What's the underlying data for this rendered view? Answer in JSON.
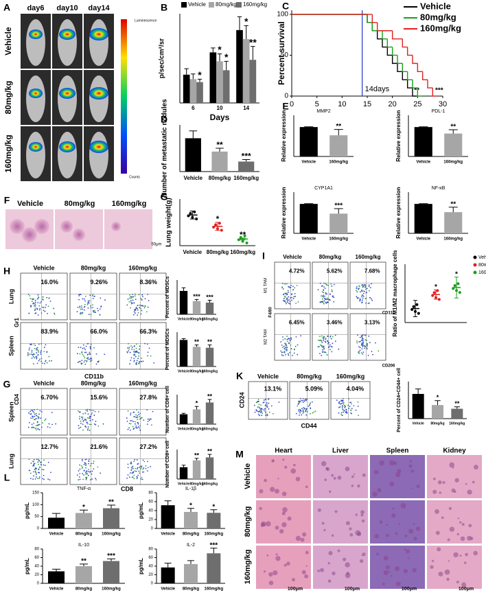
{
  "panel_letters": [
    "A",
    "B",
    "C",
    "D",
    "E",
    "F",
    "G",
    "H",
    "I",
    "G",
    "K",
    "L",
    "M"
  ],
  "images": {
    "A": {
      "columns": [
        "day6",
        "day10",
        "day14"
      ],
      "rows": [
        "Vehicle",
        "80mg/kg",
        "160mg/kg"
      ],
      "colorbar_title": "Luminescence",
      "colorbar_unit": "Counts"
    },
    "F": {
      "columns": [
        "Vehicle",
        "80mg/kg",
        "160mg/kg"
      ],
      "scale": "50μm"
    },
    "H": {
      "columns": [
        "Vehicle",
        "80mg/kg",
        "160mg/kg"
      ],
      "rows": [
        "Lung",
        "Spleen"
      ],
      "y_axis": "Gr1",
      "x_axis": "CD11b",
      "percents": [
        "16.0%",
        "9.26%",
        "8.36%",
        "83.9%",
        "66.0%",
        "66.3%"
      ]
    },
    "I": {
      "columns": [
        "Vehicle",
        "80mg/kg",
        "160mg/kg"
      ],
      "rows": [
        "M1 TAM",
        "M2 TAM"
      ],
      "y_axis": "F4/80",
      "x_axes": [
        "CD11c",
        "CD206"
      ],
      "percents": [
        "4.72%",
        "5.62%",
        "7.68%",
        "6.45%",
        "3.46%",
        "3.13%"
      ]
    },
    "G": {
      "columns": [
        "Vehicle",
        "80mg/kg",
        "160mg/kg"
      ],
      "rows": [
        "Spleen",
        "Lung"
      ],
      "y_axis": "CD4",
      "x_axis": "CD8",
      "percents": [
        "6.70%",
        "15.6%",
        "27.8%",
        "12.7%",
        "21.6%",
        "27.2%"
      ]
    },
    "K": {
      "columns": [
        "Vehicle",
        "80mg/kg",
        "160mg/kg"
      ],
      "y_axis": "CD24",
      "x_axis": "CD44",
      "percents": [
        "13.1%",
        "5.09%",
        "4.04%"
      ]
    },
    "M": {
      "columns": [
        "Heart",
        "Liver",
        "Spleen",
        "Kidney"
      ],
      "rows": [
        "Vehicle",
        "80mg/kg",
        "160mg/kg"
      ],
      "scales": [
        "100μm",
        "100μm",
        "100μm",
        "100μm"
      ]
    }
  },
  "chart_data": [
    {
      "type": "grouped_bar",
      "ylabel": "p/sec/cm²/sr",
      "xlabel": "Days",
      "categories": [
        "6",
        "10",
        "14"
      ],
      "ylim": [
        0,
        6000
      ],
      "series": [
        {
          "name": "Vehicle",
          "color": "#000000",
          "values": [
            1900,
            3400,
            4900
          ],
          "errors": [
            400,
            300,
            900
          ],
          "annotations": [
            null,
            null,
            null
          ]
        },
        {
          "name": "80mg/kg",
          "color": "#a6a6a6",
          "values": [
            1600,
            2800,
            4300
          ],
          "errors": [
            350,
            500,
            900
          ],
          "annotations": [
            null,
            "*",
            "*"
          ]
        },
        {
          "name": "160mg/kg",
          "color": "#6e6e6e",
          "values": [
            1400,
            2200,
            2900
          ],
          "errors": [
            200,
            600,
            900
          ],
          "annotations": [
            "*",
            "*",
            "**"
          ]
        }
      ]
    },
    {
      "type": "survival",
      "ylabel": "Percent survival",
      "xlim": [
        0,
        30
      ],
      "ylim": [
        0,
        105
      ],
      "xticks": [
        0,
        5,
        10,
        15,
        20,
        25,
        30
      ],
      "yticks": [
        0,
        50,
        100
      ],
      "vline": 14,
      "annotations": [
        "14days",
        "**",
        "***"
      ],
      "series": [
        {
          "name": "Vehicle",
          "color": "#000000",
          "x": [
            0,
            15,
            16,
            17,
            18,
            19,
            20,
            21,
            22,
            23,
            24
          ],
          "values": [
            100,
            90,
            80,
            70,
            60,
            50,
            40,
            30,
            20,
            10,
            0
          ]
        },
        {
          "name": "80mg/kg",
          "color": "#1a9e1a",
          "x": [
            0,
            15,
            16,
            18,
            19,
            20,
            21,
            22,
            23,
            24,
            25
          ],
          "values": [
            100,
            90,
            80,
            70,
            60,
            50,
            40,
            30,
            20,
            10,
            0
          ]
        },
        {
          "name": "160mg/kg",
          "color": "#e0201e",
          "x": [
            0,
            16,
            17,
            20,
            22,
            23,
            24,
            25,
            26,
            27,
            28
          ],
          "values": [
            100,
            90,
            80,
            70,
            60,
            50,
            40,
            30,
            20,
            10,
            0
          ]
        }
      ]
    },
    {
      "type": "bar",
      "ylabel": "Number of metastatic nodules",
      "categories": [
        "Vehicle",
        "80mg/kg",
        "160mg/kg"
      ],
      "values": [
        50,
        30,
        15
      ],
      "errors": [
        11,
        5,
        3
      ],
      "colors": [
        "#000000",
        "#a6a6a6",
        "#6e6e6e"
      ],
      "annotations": [
        null,
        "**",
        "***"
      ],
      "ylim": [
        0,
        70
      ]
    },
    {
      "type": "dot",
      "ylabel": "Lung weight(g)",
      "categories": [
        "Vehicle",
        "80mg/kg",
        "160mg/kg"
      ],
      "values": [
        1.12,
        0.78,
        0.4
      ],
      "errors": [
        0.12,
        0.12,
        0.03
      ],
      "colors": [
        "#000000",
        "#e0201e",
        "#1a9e1a"
      ],
      "annotations": [
        null,
        "*",
        "**"
      ],
      "ylim": [
        0.2,
        1.6
      ]
    },
    {
      "type": "bar",
      "title": "MMP2",
      "ylabel": "Relative expression",
      "categories": [
        "Vehicle",
        "160mg/kg"
      ],
      "values": [
        1.0,
        0.72
      ],
      "errors": [
        0.01,
        0.2
      ],
      "colors": [
        "#000000",
        "#a6a6a6"
      ],
      "annotations": [
        null,
        "**"
      ],
      "ylim": [
        0,
        1.4
      ]
    },
    {
      "type": "bar",
      "title": "PDL-1",
      "ylabel": "Relative expression",
      "categories": [
        "Vehicle",
        "160mg/kg"
      ],
      "values": [
        1.0,
        0.78
      ],
      "errors": [
        0.01,
        0.13
      ],
      "colors": [
        "#000000",
        "#a6a6a6"
      ],
      "annotations": [
        null,
        "**"
      ],
      "ylim": [
        0,
        1.4
      ]
    },
    {
      "type": "bar",
      "title": "CYP1A1",
      "ylabel": "Relative expression",
      "categories": [
        "Vehicle",
        "160mg/kg"
      ],
      "values": [
        1.0,
        0.67
      ],
      "errors": [
        0.01,
        0.17
      ],
      "colors": [
        "#000000",
        "#a6a6a6"
      ],
      "annotations": [
        null,
        "***"
      ],
      "ylim": [
        0,
        1.4
      ]
    },
    {
      "type": "bar",
      "title": "NF-κB",
      "ylabel": "Relative expression",
      "categories": [
        "Vehicle",
        "160mg/kg"
      ],
      "values": [
        1.0,
        0.72
      ],
      "errors": [
        0.01,
        0.17
      ],
      "colors": [
        "#000000",
        "#a6a6a6"
      ],
      "annotations": [
        null,
        "**"
      ],
      "ylim": [
        0,
        1.4
      ]
    },
    {
      "type": "bar",
      "ylabel": "Percent of MDSCs",
      "categories": [
        "Vehicle",
        "80mg/kg",
        "160mg/kg"
      ],
      "values": [
        15,
        8.5,
        7.5
      ],
      "errors": [
        2,
        1,
        1.5
      ],
      "colors": [
        "#000000",
        "#a6a6a6",
        "#6e6e6e"
      ],
      "annotations": [
        null,
        "***",
        "***"
      ],
      "ylim": [
        0,
        22
      ]
    },
    {
      "type": "bar",
      "ylabel": "Percent of MDSCs",
      "categories": [
        "Vehicle",
        "80mg/kg",
        "160mg/kg"
      ],
      "values": [
        85,
        63,
        60
      ],
      "errors": [
        4,
        6,
        9
      ],
      "colors": [
        "#000000",
        "#a6a6a6",
        "#6e6e6e"
      ],
      "annotations": [
        null,
        "**",
        "**"
      ],
      "ylim": [
        0,
        110
      ]
    },
    {
      "type": "dot",
      "ylabel": "Ratio of M1/M2 macrophage cells",
      "legend": [
        "Vehicle",
        "80mg/kg",
        "160mg/kg"
      ],
      "categories": [
        null,
        null,
        null
      ],
      "values": [
        60,
        120,
        150
      ],
      "errors": [
        35,
        20,
        45
      ],
      "colors": [
        "#000000",
        "#e0201e",
        "#1a9e1a"
      ],
      "annotations": [
        null,
        "*",
        "*"
      ],
      "ylim": [
        0,
        250
      ]
    },
    {
      "type": "bar",
      "ylabel": "Number of CD8+ cell",
      "categories": [
        "Vehicle",
        "80mg/kg",
        "160mg/kg"
      ],
      "values": [
        10,
        15,
        22
      ],
      "errors": [
        1,
        3,
        3
      ],
      "colors": [
        "#000000",
        "#a6a6a6",
        "#6e6e6e"
      ],
      "annotations": [
        null,
        "*",
        "**"
      ],
      "ylim": [
        0,
        30
      ]
    },
    {
      "type": "bar",
      "ylabel": "Number of CD8+ cell",
      "categories": [
        "Vehicle",
        "80mg/kg",
        "160mg/kg"
      ],
      "values": [
        12,
        19,
        22
      ],
      "errors": [
        2,
        2,
        3
      ],
      "colors": [
        "#000000",
        "#a6a6a6",
        "#6e6e6e"
      ],
      "annotations": [
        null,
        "**",
        "**"
      ],
      "ylim": [
        0,
        30
      ]
    },
    {
      "type": "bar",
      "ylabel": "Percent of CD24+CD44+ cell",
      "categories": [
        "Vehicle",
        "80mg/kg",
        "160mg/kg"
      ],
      "values": [
        10,
        5.5,
        4
      ],
      "errors": [
        2,
        1.8,
        0.8
      ],
      "colors": [
        "#000000",
        "#a6a6a6",
        "#6e6e6e"
      ],
      "annotations": [
        null,
        "*",
        "**"
      ],
      "ylim": [
        0,
        15
      ]
    },
    {
      "type": "bar",
      "title": "TNF-α",
      "ylabel": "pg/mL",
      "categories": [
        "Vehicle",
        "80mg/kg",
        "160mg/kg"
      ],
      "values": [
        45,
        65,
        85
      ],
      "errors": [
        18,
        12,
        13
      ],
      "colors": [
        "#000000",
        "#a6a6a6",
        "#6e6e6e"
      ],
      "annotations": [
        null,
        "*",
        "**"
      ],
      "ylim": [
        0,
        150
      ],
      "yticks": [
        0,
        50,
        100,
        150
      ]
    },
    {
      "type": "bar",
      "title": "IL-1β",
      "ylabel": "pg/mL",
      "categories": [
        "Vehicle",
        "80mg/kg",
        "160mg/kg"
      ],
      "values": [
        52,
        37,
        35
      ],
      "errors": [
        10,
        8,
        7
      ],
      "colors": [
        "#000000",
        "#a6a6a6",
        "#6e6e6e"
      ],
      "annotations": [
        null,
        "*",
        "*"
      ],
      "ylim": [
        0,
        80
      ],
      "yticks": [
        0,
        20,
        40,
        60,
        80
      ]
    },
    {
      "type": "bar",
      "title": "IL-10",
      "ylabel": "pg/mL",
      "categories": [
        "Vehicle",
        "80mg/kg",
        "160mg/kg"
      ],
      "values": [
        28,
        40,
        52
      ],
      "errors": [
        5,
        5,
        5
      ],
      "colors": [
        "#000000",
        "#a6a6a6",
        "#6e6e6e"
      ],
      "annotations": [
        null,
        "**",
        "***"
      ],
      "ylim": [
        0,
        80
      ],
      "yticks": [
        0,
        20,
        40,
        60,
        80
      ]
    },
    {
      "type": "bar",
      "title": "IL-2",
      "ylabel": "pg/mL",
      "categories": [
        "Vehicle",
        "80mg/kg",
        "160mg/kg"
      ],
      "values": [
        37,
        45,
        70
      ],
      "errors": [
        10,
        8,
        12
      ],
      "colors": [
        "#000000",
        "#a6a6a6",
        "#6e6e6e"
      ],
      "annotations": [
        null,
        null,
        "***"
      ],
      "ylim": [
        0,
        80
      ],
      "yticks": [
        0,
        20,
        40,
        60,
        80
      ]
    }
  ]
}
